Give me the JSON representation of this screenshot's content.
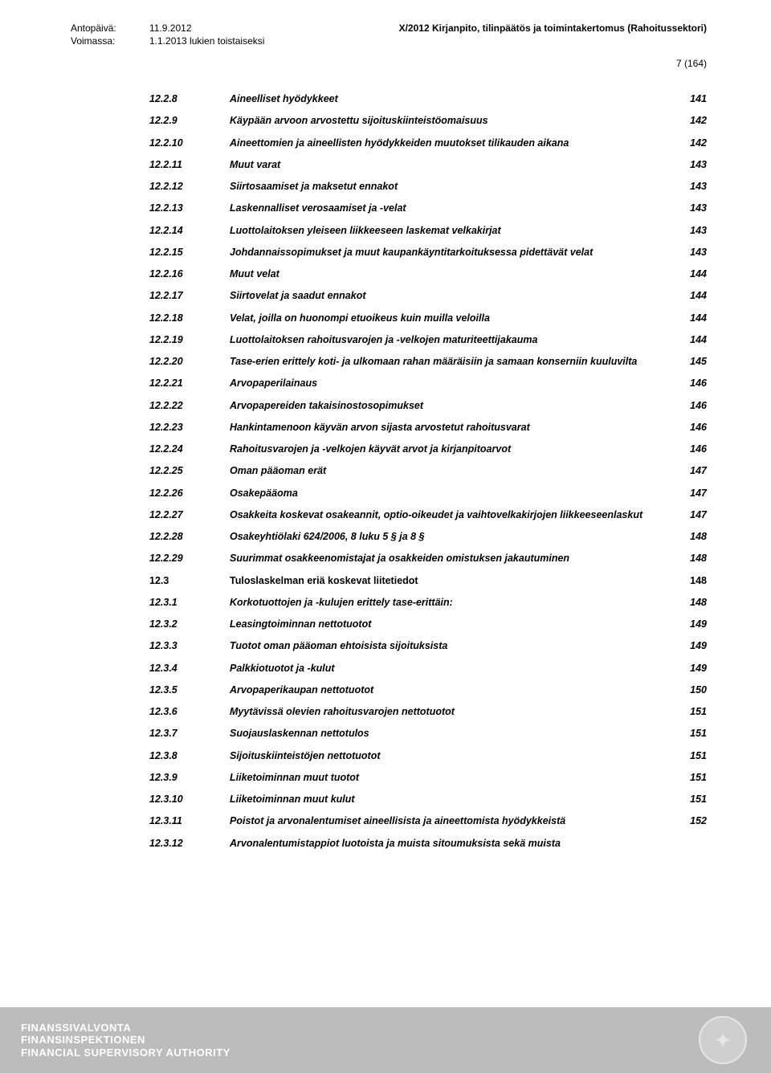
{
  "header": {
    "issue_label": "Antopäivä:",
    "issue_date": "11.9.2012",
    "valid_label": "Voimassa:",
    "valid_value": "1.1.2013 lukien toistaiseksi",
    "doc_title": "X/2012 Kirjanpito, tilinpäätös ja toimintakertomus (Rahoitussektori)",
    "page_marker": "7 (164)"
  },
  "toc": [
    {
      "num": "12.2.8",
      "title": "Aineelliset hyödykkeet",
      "page": "141",
      "italic": true
    },
    {
      "num": "12.2.9",
      "title": "Käypään arvoon arvostettu sijoituskiinteistöomaisuus",
      "page": "142",
      "italic": true
    },
    {
      "num": "12.2.10",
      "title": "Aineettomien ja aineellisten hyödykkeiden muutokset tilikauden aikana",
      "page": "142",
      "italic": true
    },
    {
      "num": "12.2.11",
      "title": "Muut varat",
      "page": "143",
      "italic": true
    },
    {
      "num": "12.2.12",
      "title": "Siirtosaamiset ja maksetut ennakot",
      "page": "143",
      "italic": true
    },
    {
      "num": "12.2.13",
      "title": "Laskennalliset verosaamiset ja -velat",
      "page": "143",
      "italic": true
    },
    {
      "num": "12.2.14",
      "title": "Luottolaitoksen yleiseen liikkeeseen laskemat velkakirjat",
      "page": "143",
      "italic": true
    },
    {
      "num": "12.2.15",
      "title": "Johdannaissopimukset ja muut kaupankäyntitarkoituksessa pidettävät velat",
      "page": "143",
      "italic": true
    },
    {
      "num": "12.2.16",
      "title": "Muut velat",
      "page": "144",
      "italic": true
    },
    {
      "num": "12.2.17",
      "title": "Siirtovelat ja saadut ennakot",
      "page": "144",
      "italic": true
    },
    {
      "num": "12.2.18",
      "title": "Velat, joilla on huonompi etuoikeus kuin muilla veloilla",
      "page": "144",
      "italic": true
    },
    {
      "num": "12.2.19",
      "title": "Luottolaitoksen rahoitusvarojen ja -velkojen maturiteettijakauma",
      "page": "144",
      "italic": true
    },
    {
      "num": "12.2.20",
      "title": "Tase-erien erittely koti- ja ulkomaan rahan määräisiin ja samaan konserniin kuuluvilta",
      "page": "145",
      "italic": true
    },
    {
      "num": "12.2.21",
      "title": "Arvopaperilainaus",
      "page": "146",
      "italic": true
    },
    {
      "num": "12.2.22",
      "title": "Arvopapereiden takaisinostosopimukset",
      "page": "146",
      "italic": true
    },
    {
      "num": "12.2.23",
      "title": "Hankintamenoon käyvän arvon sijasta arvostetut rahoitusvarat",
      "page": "146",
      "italic": true
    },
    {
      "num": "12.2.24",
      "title": "Rahoitusvarojen ja -velkojen käyvät arvot ja kirjanpitoarvot",
      "page": "146",
      "italic": true
    },
    {
      "num": "12.2.25",
      "title": "Oman pääoman erät",
      "page": "147",
      "italic": true
    },
    {
      "num": "12.2.26",
      "title": "Osakepääoma",
      "page": "147",
      "italic": true
    },
    {
      "num": "12.2.27",
      "title": "Osakkeita koskevat osakeannit, optio-oikeudet ja vaihtovelkakirjojen liikkeeseenlaskut",
      "page": "147",
      "italic": true
    },
    {
      "num": "12.2.28",
      "title": "Osakeyhtiölaki 624/2006, 8 luku 5 § ja 8 §",
      "page": "148",
      "italic": true
    },
    {
      "num": "12.2.29",
      "title": "Suurimmat osakkeenomistajat ja osakkeiden omistuksen jakautuminen",
      "page": "148",
      "italic": true
    },
    {
      "num": "12.3",
      "title": "Tuloslaskelman eriä koskevat liitetiedot",
      "page": "148",
      "italic": false
    },
    {
      "num": "12.3.1",
      "title": "Korkotuottojen ja -kulujen erittely tase-erittäin:",
      "page": "148",
      "italic": true
    },
    {
      "num": "12.3.2",
      "title": "Leasingtoiminnan nettotuotot",
      "page": "149",
      "italic": true
    },
    {
      "num": "12.3.3",
      "title": "Tuotot oman pääoman ehtoisista sijoituksista",
      "page": "149",
      "italic": true
    },
    {
      "num": "12.3.4",
      "title": "Palkkiotuotot ja -kulut",
      "page": "149",
      "italic": true
    },
    {
      "num": "12.3.5",
      "title": "Arvopaperikaupan nettotuotot",
      "page": "150",
      "italic": true
    },
    {
      "num": "12.3.6",
      "title": "Myytävissä olevien rahoitusvarojen nettotuotot",
      "page": "151",
      "italic": true
    },
    {
      "num": "12.3.7",
      "title": "Suojauslaskennan nettotulos",
      "page": "151",
      "italic": true
    },
    {
      "num": "12.3.8",
      "title": "Sijoituskiinteistöjen nettotuotot",
      "page": "151",
      "italic": true
    },
    {
      "num": "12.3.9",
      "title": "Liiketoiminnan muut tuotot",
      "page": "151",
      "italic": true
    },
    {
      "num": "12.3.10",
      "title": "Liiketoiminnan muut kulut",
      "page": "151",
      "italic": true
    },
    {
      "num": "12.3.11",
      "title": "Poistot ja arvonalentumiset aineellisista ja aineettomista hyödykkeistä",
      "page": "152",
      "italic": true
    },
    {
      "num": "12.3.12",
      "title": "Arvonalentumistappiot luotoista ja muista sitoumuksista sekä muista",
      "page": "",
      "italic": true
    }
  ],
  "footer": {
    "line1": "FINANSSIVALVONTA",
    "line2": "FINANSINSPEKTIONEN",
    "line3": "FINANCIAL SUPERVISORY AUTHORITY"
  }
}
